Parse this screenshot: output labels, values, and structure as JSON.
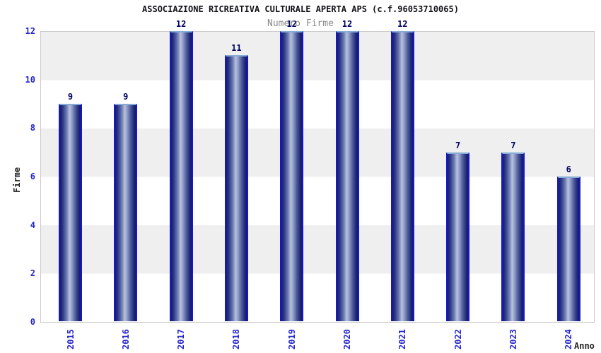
{
  "chart_data": {
    "type": "bar",
    "title": "ASSOCIAZIONE RICREATIVA CULTURALE APERTA APS (c.f.96053710065)",
    "subtitle": "Numero Firme",
    "categories": [
      "2015",
      "2016",
      "2017",
      "2018",
      "2019",
      "2020",
      "2021",
      "2022",
      "2023",
      "2024"
    ],
    "values": [
      9,
      9,
      12,
      11,
      12,
      12,
      12,
      7,
      7,
      6
    ],
    "xlabel": "Anno",
    "ylabel": "Firme",
    "ylim": [
      0,
      12
    ],
    "yticks": [
      0,
      2,
      4,
      6,
      8,
      10,
      12
    ],
    "legend_position": "none",
    "grid": "alternating horizontal bands every 2 units",
    "bar_value_labels_shown": true,
    "colors": {
      "bar_dark": "#141a66",
      "bar_highlight": "#b7c1de",
      "bar_side_edge": "#1717cf",
      "bar_top_edge": "#85abd6",
      "tick_label": "#2626cc",
      "value_label": "#00005e",
      "band_gray": "#efefef",
      "plot_border": "#c9c9c9",
      "subtitle_gray": "#8a8a8a",
      "title_color": "#121218"
    }
  }
}
